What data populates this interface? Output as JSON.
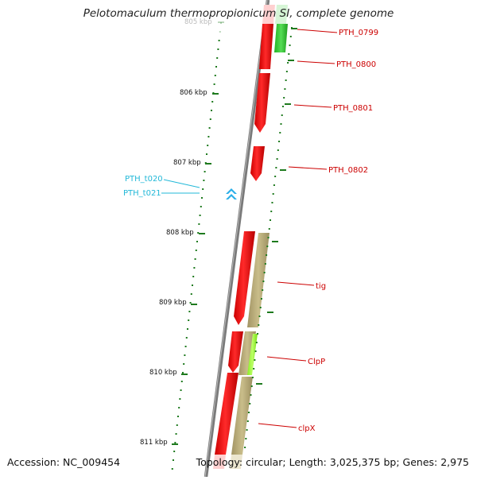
{
  "title": "Pelotomaculum thermopropionicum SI, complete genome",
  "footer": {
    "accession": "Accession: NC_009454",
    "summary": "Topology: circular; Length: 3,025,375 bp; Genes: 2,975"
  },
  "colors": {
    "backbone": "#808080",
    "ruler_tick": "#1e7a1e",
    "gene_red": "#ff0000",
    "gene_green": "#33cc33",
    "gene_olive": "#b9ad7a",
    "gene_lime": "#99ff33",
    "trna_blue": "#29aee8",
    "label_red": "#cc0000",
    "label_cyan": "#22b8d8"
  },
  "ruler": {
    "unit": "kbp",
    "labels": [
      "805 kbp",
      "806 kbp",
      "807 kbp",
      "808 kbp",
      "809 kbp",
      "810 kbp",
      "811 kbp"
    ]
  },
  "genes": [
    {
      "label": "PTH_0799"
    },
    {
      "label": "PTH_0800"
    },
    {
      "label": "PTH_0801"
    },
    {
      "label": "PTH_0802"
    },
    {
      "label": "tig"
    },
    {
      "label": "ClpP"
    },
    {
      "label": "clpX"
    }
  ],
  "trnas": [
    {
      "label": "PTH_t020"
    },
    {
      "label": "PTH_t021"
    }
  ]
}
